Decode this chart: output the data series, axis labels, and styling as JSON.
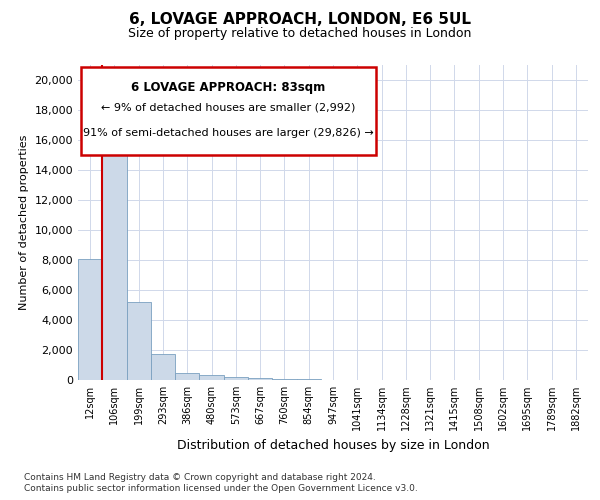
{
  "title": "6, LOVAGE APPROACH, LONDON, E6 5UL",
  "subtitle": "Size of property relative to detached houses in London",
  "xlabel": "Distribution of detached houses by size in London",
  "ylabel": "Number of detached properties",
  "footer_line1": "Contains HM Land Registry data © Crown copyright and database right 2024.",
  "footer_line2": "Contains public sector information licensed under the Open Government Licence v3.0.",
  "annotation_line1": "6 LOVAGE APPROACH: 83sqm",
  "annotation_line2": "← 9% of detached houses are smaller (2,992)",
  "annotation_line3": "91% of semi-detached houses are larger (29,826) →",
  "bar_color": "#ccd9e8",
  "bar_edge_color": "#7aa0c0",
  "marker_color": "#cc0000",
  "annotation_box_edge": "#cc0000",
  "grid_color": "#d0d8ea",
  "background_color": "#ffffff",
  "categories": [
    "12sqm",
    "106sqm",
    "199sqm",
    "293sqm",
    "386sqm",
    "480sqm",
    "573sqm",
    "667sqm",
    "760sqm",
    "854sqm",
    "947sqm",
    "1041sqm",
    "1134sqm",
    "1228sqm",
    "1321sqm",
    "1415sqm",
    "1508sqm",
    "1602sqm",
    "1695sqm",
    "1789sqm",
    "1882sqm"
  ],
  "values": [
    8050,
    16400,
    5200,
    1750,
    500,
    350,
    200,
    150,
    100,
    60,
    0,
    0,
    0,
    0,
    0,
    0,
    0,
    0,
    0,
    0,
    0
  ],
  "ylim": [
    0,
    21000
  ],
  "yticks": [
    0,
    2000,
    4000,
    6000,
    8000,
    10000,
    12000,
    14000,
    16000,
    18000,
    20000
  ]
}
